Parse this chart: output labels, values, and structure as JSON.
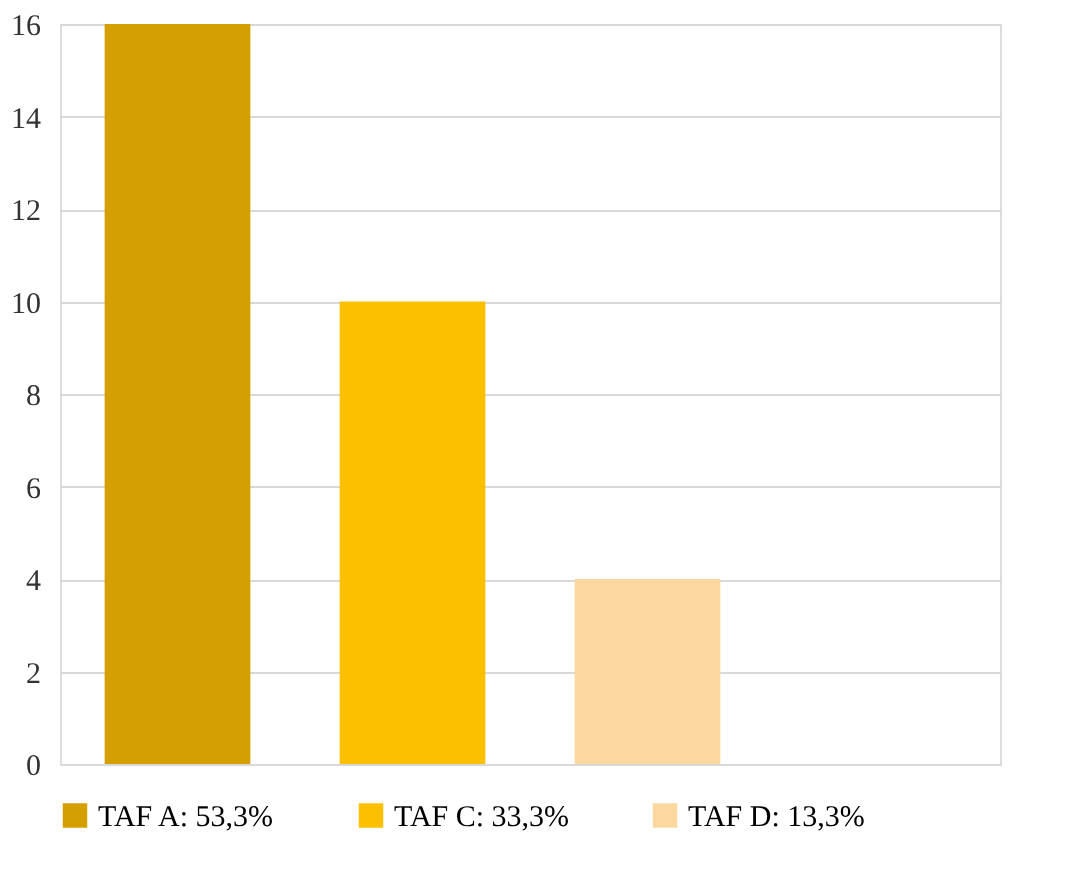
{
  "chart_data": {
    "type": "bar",
    "categories": [
      null,
      null,
      null,
      null
    ],
    "series": [
      {
        "name": "TAF A: 53,3%",
        "color": "#d49f00",
        "values": [
          16,
          null,
          null,
          null
        ]
      },
      {
        "name": "TAF C: 33,3%",
        "color": "#fdc000",
        "values": [
          null,
          10,
          null,
          null
        ]
      },
      {
        "name": "TAF D: 13,3%",
        "color": "#fbd89f",
        "values": [
          null,
          null,
          4,
          null
        ]
      }
    ],
    "ylim": [
      0,
      16
    ],
    "yticks": [
      0,
      2,
      4,
      6,
      8,
      10,
      12,
      14,
      16
    ],
    "grid": "y",
    "legend": "bottom",
    "tick_labels": "y"
  }
}
